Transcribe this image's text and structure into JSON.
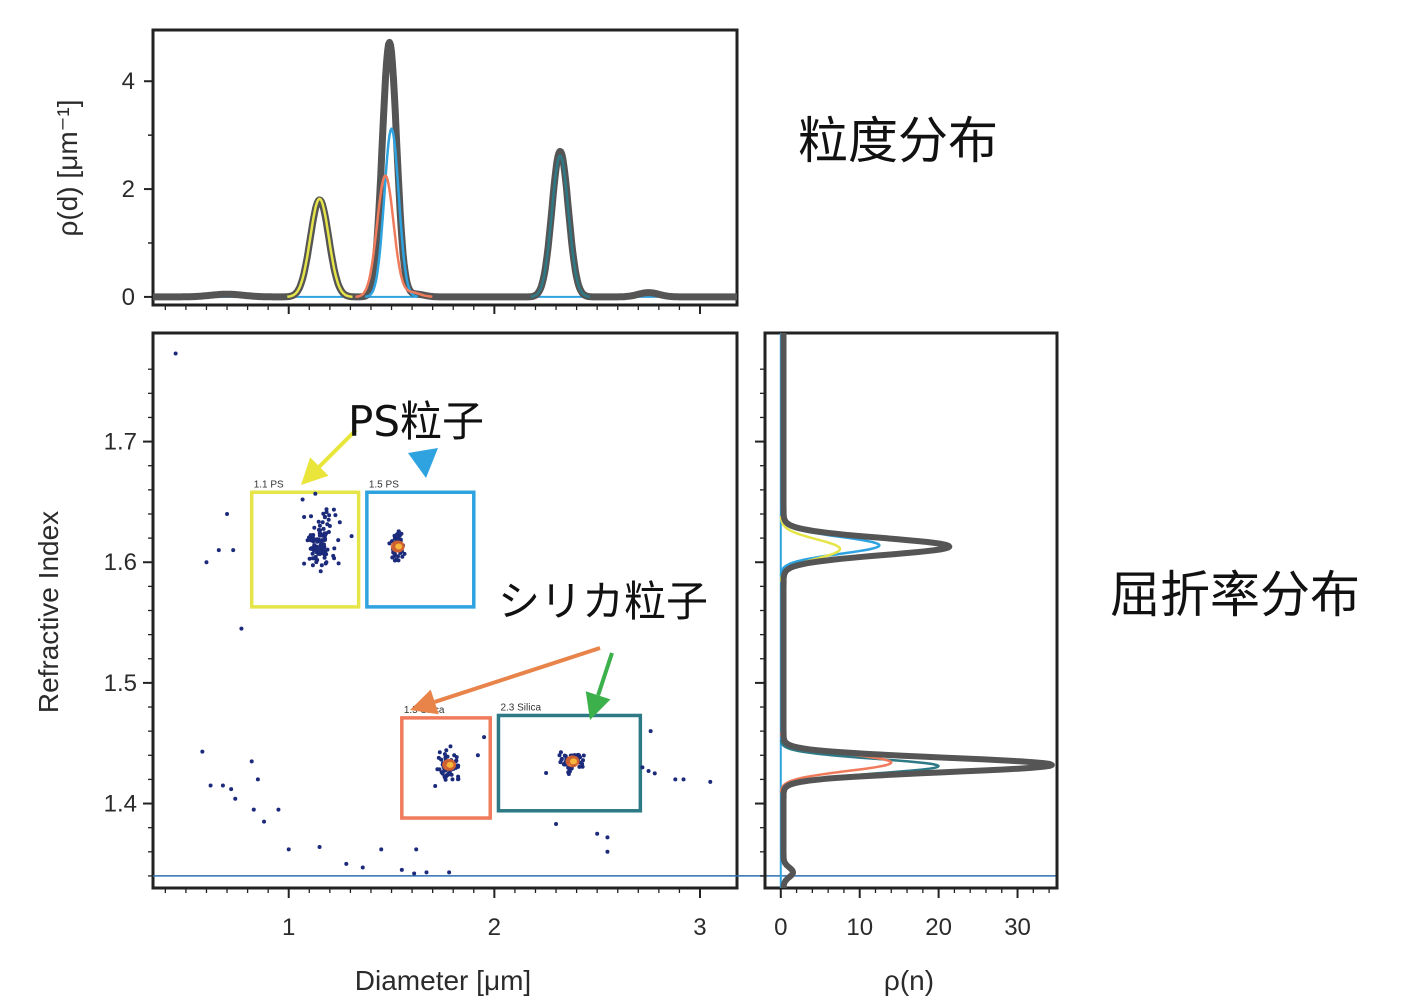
{
  "page": {
    "side_labels": {
      "size_distribution": "粒度分布",
      "ri_distribution": "屈折率分布"
    },
    "annotations": {
      "ps": "PS粒子",
      "silica": "シリカ粒子"
    }
  },
  "colors": {
    "total": "#555555",
    "ps_small": "#e5e54a",
    "ps_large": "#2ea3e0",
    "silica_small": "#f07b5c",
    "silica_large": "#2d7a86",
    "points": "#1b2a7a",
    "arrow_yellow": "#e9e53a",
    "arrow_blue": "#2ea3e0",
    "arrow_orange": "#e8834a",
    "arrow_green": "#3cb04a",
    "hline": "#2c6fb0"
  },
  "chart_data": [
    {
      "id": "size_distribution",
      "type": "line",
      "ylabel": "ρ(d) [μm⁻¹]",
      "xlim": [
        0.34,
        3.18
      ],
      "ylim": [
        -0.15,
        4.95
      ],
      "yticks": [
        "0",
        "2",
        "4"
      ],
      "ytick_values": [
        0,
        2,
        4
      ],
      "series": [
        {
          "key": "total",
          "peaks": [
            [
              0.7,
              0.05,
              0.08
            ],
            [
              1.15,
              1.8,
              0.045
            ],
            [
              1.49,
              4.72,
              0.035
            ],
            [
              1.62,
              0.05,
              0.04
            ],
            [
              2.32,
              2.7,
              0.04
            ],
            [
              2.75,
              0.08,
              0.05
            ]
          ]
        },
        {
          "key": "ps_small",
          "peaks": [
            [
              1.15,
              1.82,
              0.045
            ]
          ]
        },
        {
          "key": "ps_large",
          "peaks": [
            [
              1.5,
              3.12,
              0.035
            ]
          ]
        },
        {
          "key": "silica_small",
          "peaks": [
            [
              1.47,
              2.25,
              0.04
            ],
            [
              1.6,
              0.08,
              0.04
            ]
          ]
        },
        {
          "key": "silica_large",
          "peaks": [
            [
              2.32,
              2.62,
              0.04
            ]
          ]
        }
      ]
    },
    {
      "id": "scatter",
      "type": "scatter",
      "xlabel": "Diameter [μm]",
      "ylabel": "Refractive Index",
      "xlim": [
        0.34,
        3.18
      ],
      "ylim": [
        1.33,
        1.79
      ],
      "xticks": [
        "1",
        "2",
        "3"
      ],
      "xtick_values": [
        1,
        2,
        3
      ],
      "yticks": [
        "1.4",
        "1.5",
        "1.6",
        "1.7"
      ],
      "ytick_values": [
        1.4,
        1.5,
        1.6,
        1.7
      ],
      "hline": 1.34,
      "boxes": [
        {
          "label": "1.1 PS",
          "color_key": "ps_small",
          "x0": 0.82,
          "x1": 1.34,
          "y0": 1.563,
          "y1": 1.658
        },
        {
          "label": "1.5 PS",
          "color_key": "ps_large",
          "x0": 1.38,
          "x1": 1.9,
          "y0": 1.563,
          "y1": 1.658
        },
        {
          "label": "1.5 Silica",
          "color_key": "silica_small",
          "x0": 1.55,
          "x1": 1.98,
          "y0": 1.388,
          "y1": 1.471
        },
        {
          "label": "2.3 Silica",
          "color_key": "silica_large",
          "x0": 2.02,
          "x1": 2.71,
          "y0": 1.394,
          "y1": 1.473
        }
      ],
      "clusters": [
        {
          "x": 1.15,
          "y": 1.617,
          "sx": 0.04,
          "sy": 0.012,
          "n": 110,
          "hot": false
        },
        {
          "x": 1.53,
          "y": 1.613,
          "sx": 0.018,
          "sy": 0.007,
          "n": 60,
          "hot": true
        },
        {
          "x": 1.78,
          "y": 1.432,
          "sx": 0.025,
          "sy": 0.005,
          "n": 70,
          "hot": true
        },
        {
          "x": 2.38,
          "y": 1.435,
          "sx": 0.03,
          "sy": 0.004,
          "n": 60,
          "hot": true
        }
      ],
      "outliers": [
        [
          0.45,
          1.773
        ],
        [
          0.7,
          1.64
        ],
        [
          0.6,
          1.6
        ],
        [
          0.66,
          1.61
        ],
        [
          0.73,
          1.61
        ],
        [
          0.77,
          1.545
        ],
        [
          0.58,
          1.443
        ],
        [
          0.62,
          1.415
        ],
        [
          0.68,
          1.415
        ],
        [
          0.72,
          1.412
        ],
        [
          0.74,
          1.404
        ],
        [
          0.85,
          1.42
        ],
        [
          0.83,
          1.395
        ],
        [
          0.88,
          1.385
        ],
        [
          0.95,
          1.395
        ],
        [
          0.82,
          1.435
        ],
        [
          1.0,
          1.362
        ],
        [
          1.15,
          1.364
        ],
        [
          1.28,
          1.35
        ],
        [
          1.36,
          1.347
        ],
        [
          1.45,
          1.362
        ],
        [
          1.55,
          1.345
        ],
        [
          1.61,
          1.342
        ],
        [
          1.67,
          1.343
        ],
        [
          1.78,
          1.343
        ],
        [
          1.62,
          1.362
        ],
        [
          1.95,
          1.455
        ],
        [
          1.92,
          1.44
        ],
        [
          2.3,
          1.383
        ],
        [
          2.5,
          1.375
        ],
        [
          2.55,
          1.372
        ],
        [
          2.55,
          1.36
        ],
        [
          2.75,
          1.427
        ],
        [
          2.78,
          1.425
        ],
        [
          2.88,
          1.42
        ],
        [
          2.92,
          1.42
        ],
        [
          3.05,
          1.418
        ],
        [
          2.76,
          1.46
        ],
        [
          2.72,
          1.43
        ]
      ]
    },
    {
      "id": "ri_distribution",
      "type": "line",
      "xlabel": "ρ(n)",
      "xlim": [
        -2,
        35
      ],
      "ylim": [
        1.33,
        1.79
      ],
      "xticks": [
        "0",
        "10",
        "20",
        "30"
      ],
      "xtick_values": [
        0,
        10,
        20,
        30
      ],
      "series": [
        {
          "key": "total",
          "peaks": [
            [
              1.613,
              21,
              0.007
            ],
            [
              1.432,
              34,
              0.006
            ],
            [
              1.343,
              1.2,
              0.004
            ]
          ]
        },
        {
          "key": "ps_small",
          "peaks": [
            [
              1.611,
              7.5,
              0.008
            ]
          ]
        },
        {
          "key": "ps_large",
          "peaks": [
            [
              1.614,
              12.5,
              0.007
            ]
          ]
        },
        {
          "key": "silica_small",
          "peaks": [
            [
              1.434,
              14,
              0.007
            ]
          ]
        },
        {
          "key": "silica_large",
          "peaks": [
            [
              1.431,
              20,
              0.006
            ]
          ]
        }
      ]
    }
  ]
}
